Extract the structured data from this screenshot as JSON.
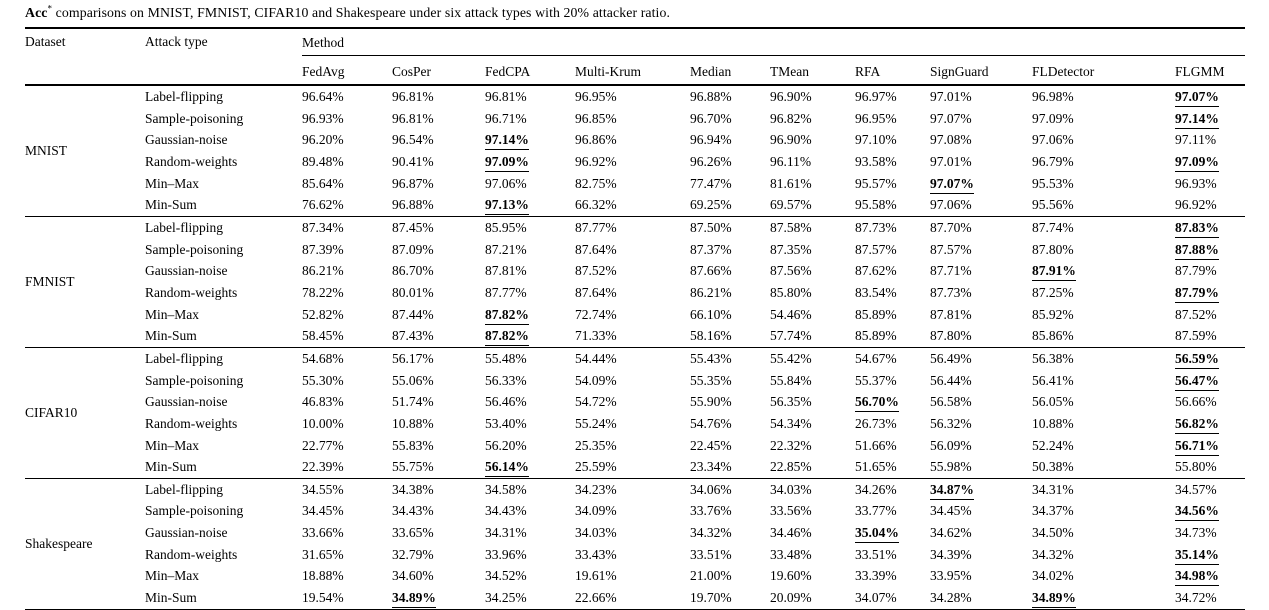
{
  "caption": {
    "bold_prefix": "Acc",
    "superscript": "*",
    "rest": " comparisons on MNIST, FMNIST, CIFAR10 and Shakespeare under six attack types with 20% attacker ratio."
  },
  "table": {
    "col1_header": "Dataset",
    "col2_header": "Attack type",
    "method_group_header": "Method",
    "methods": [
      "FedAvg",
      "CosPer",
      "FedCPA",
      "Multi-Krum",
      "Median",
      "TMean",
      "RFA",
      "SignGuard",
      "FLDetector",
      "FLGMM"
    ],
    "sections": [
      {
        "dataset": "MNIST",
        "rows": [
          {
            "attack": "Label-flipping",
            "values": [
              "96.64%",
              "96.81%",
              "96.81%",
              "96.95%",
              "96.88%",
              "96.90%",
              "96.97%",
              "97.01%",
              "96.98%",
              "97.07%"
            ],
            "best": [
              9
            ]
          },
          {
            "attack": "Sample-poisoning",
            "values": [
              "96.93%",
              "96.81%",
              "96.71%",
              "96.85%",
              "96.70%",
              "96.82%",
              "96.95%",
              "97.07%",
              "97.09%",
              "97.14%"
            ],
            "best": [
              9
            ]
          },
          {
            "attack": "Gaussian-noise",
            "values": [
              "96.20%",
              "96.54%",
              "97.14%",
              "96.86%",
              "96.94%",
              "96.90%",
              "97.10%",
              "97.08%",
              "97.06%",
              "97.11%"
            ],
            "best": [
              2
            ]
          },
          {
            "attack": "Random-weights",
            "values": [
              "89.48%",
              "90.41%",
              "97.09%",
              "96.92%",
              "96.26%",
              "96.11%",
              "93.58%",
              "97.01%",
              "96.79%",
              "97.09%"
            ],
            "best": [
              2,
              9
            ]
          },
          {
            "attack": "Min–Max",
            "values": [
              "85.64%",
              "96.87%",
              "97.06%",
              "82.75%",
              "77.47%",
              "81.61%",
              "95.57%",
              "97.07%",
              "95.53%",
              "96.93%"
            ],
            "best": [
              7
            ]
          },
          {
            "attack": "Min-Sum",
            "values": [
              "76.62%",
              "96.88%",
              "97.13%",
              "66.32%",
              "69.25%",
              "69.57%",
              "95.58%",
              "97.06%",
              "95.56%",
              "96.92%"
            ],
            "best": [
              2
            ]
          }
        ]
      },
      {
        "dataset": "FMNIST",
        "rows": [
          {
            "attack": "Label-flipping",
            "values": [
              "87.34%",
              "87.45%",
              "85.95%",
              "87.77%",
              "87.50%",
              "87.58%",
              "87.73%",
              "87.70%",
              "87.74%",
              "87.83%"
            ],
            "best": [
              9
            ]
          },
          {
            "attack": "Sample-poisoning",
            "values": [
              "87.39%",
              "87.09%",
              "87.21%",
              "87.64%",
              "87.37%",
              "87.35%",
              "87.57%",
              "87.57%",
              "87.80%",
              "87.88%"
            ],
            "best": [
              9
            ]
          },
          {
            "attack": "Gaussian-noise",
            "values": [
              "86.21%",
              "86.70%",
              "87.81%",
              "87.52%",
              "87.66%",
              "87.56%",
              "87.62%",
              "87.71%",
              "87.91%",
              "87.79%"
            ],
            "best": [
              8
            ]
          },
          {
            "attack": "Random-weights",
            "values": [
              "78.22%",
              "80.01%",
              "87.77%",
              "87.64%",
              "86.21%",
              "85.80%",
              "83.54%",
              "87.73%",
              "87.25%",
              "87.79%"
            ],
            "best": [
              9
            ]
          },
          {
            "attack": "Min–Max",
            "values": [
              "52.82%",
              "87.44%",
              "87.82%",
              "72.74%",
              "66.10%",
              "54.46%",
              "85.89%",
              "87.81%",
              "85.92%",
              "87.52%"
            ],
            "best": [
              2
            ]
          },
          {
            "attack": "Min-Sum",
            "values": [
              "58.45%",
              "87.43%",
              "87.82%",
              "71.33%",
              "58.16%",
              "57.74%",
              "85.89%",
              "87.80%",
              "85.86%",
              "87.59%"
            ],
            "best": [
              2
            ]
          }
        ]
      },
      {
        "dataset": "CIFAR10",
        "rows": [
          {
            "attack": "Label-flipping",
            "values": [
              "54.68%",
              "56.17%",
              "55.48%",
              "54.44%",
              "55.43%",
              "55.42%",
              "54.67%",
              "56.49%",
              "56.38%",
              "56.59%"
            ],
            "best": [
              9
            ]
          },
          {
            "attack": "Sample-poisoning",
            "values": [
              "55.30%",
              "55.06%",
              "56.33%",
              "54.09%",
              "55.35%",
              "55.84%",
              "55.37%",
              "56.44%",
              "56.41%",
              "56.47%"
            ],
            "best": [
              9
            ]
          },
          {
            "attack": "Gaussian-noise",
            "values": [
              "46.83%",
              "51.74%",
              "56.46%",
              "54.72%",
              "55.90%",
              "56.35%",
              "56.70%",
              "56.58%",
              "56.05%",
              "56.66%"
            ],
            "best": [
              6
            ]
          },
          {
            "attack": "Random-weights",
            "values": [
              "10.00%",
              "10.88%",
              "53.40%",
              "55.24%",
              "54.76%",
              "54.34%",
              "26.73%",
              "56.32%",
              "10.88%",
              "56.82%"
            ],
            "best": [
              9
            ]
          },
          {
            "attack": "Min–Max",
            "values": [
              "22.77%",
              "55.83%",
              "56.20%",
              "25.35%",
              "22.45%",
              "22.32%",
              "51.66%",
              "56.09%",
              "52.24%",
              "56.71%"
            ],
            "best": [
              9
            ]
          },
          {
            "attack": "Min-Sum",
            "values": [
              "22.39%",
              "55.75%",
              "56.14%",
              "25.59%",
              "23.34%",
              "22.85%",
              "51.65%",
              "55.98%",
              "50.38%",
              "55.80%"
            ],
            "best": [
              2
            ]
          }
        ]
      },
      {
        "dataset": "Shakespeare",
        "rows": [
          {
            "attack": "Label-flipping",
            "values": [
              "34.55%",
              "34.38%",
              "34.58%",
              "34.23%",
              "34.06%",
              "34.03%",
              "34.26%",
              "34.87%",
              "34.31%",
              "34.57%"
            ],
            "best": [
              7
            ]
          },
          {
            "attack": "Sample-poisoning",
            "values": [
              "34.45%",
              "34.43%",
              "34.43%",
              "34.09%",
              "33.76%",
              "33.56%",
              "33.77%",
              "34.45%",
              "34.37%",
              "34.56%"
            ],
            "best": [
              9
            ]
          },
          {
            "attack": "Gaussian-noise",
            "values": [
              "33.66%",
              "33.65%",
              "34.31%",
              "34.03%",
              "34.32%",
              "34.46%",
              "35.04%",
              "34.62%",
              "34.50%",
              "34.73%"
            ],
            "best": [
              6
            ]
          },
          {
            "attack": "Random-weights",
            "values": [
              "31.65%",
              "32.79%",
              "33.96%",
              "33.43%",
              "33.51%",
              "33.48%",
              "33.51%",
              "34.39%",
              "34.32%",
              "35.14%"
            ],
            "best": [
              9
            ]
          },
          {
            "attack": "Min–Max",
            "values": [
              "18.88%",
              "34.60%",
              "34.52%",
              "19.61%",
              "21.00%",
              "19.60%",
              "33.39%",
              "33.95%",
              "34.02%",
              "34.98%"
            ],
            "best": [
              9
            ]
          },
          {
            "attack": "Min-Sum",
            "values": [
              "19.54%",
              "34.89%",
              "34.25%",
              "22.66%",
              "19.70%",
              "20.09%",
              "34.07%",
              "34.28%",
              "34.89%",
              "34.72%"
            ],
            "best": [
              1,
              8
            ]
          }
        ]
      }
    ]
  }
}
